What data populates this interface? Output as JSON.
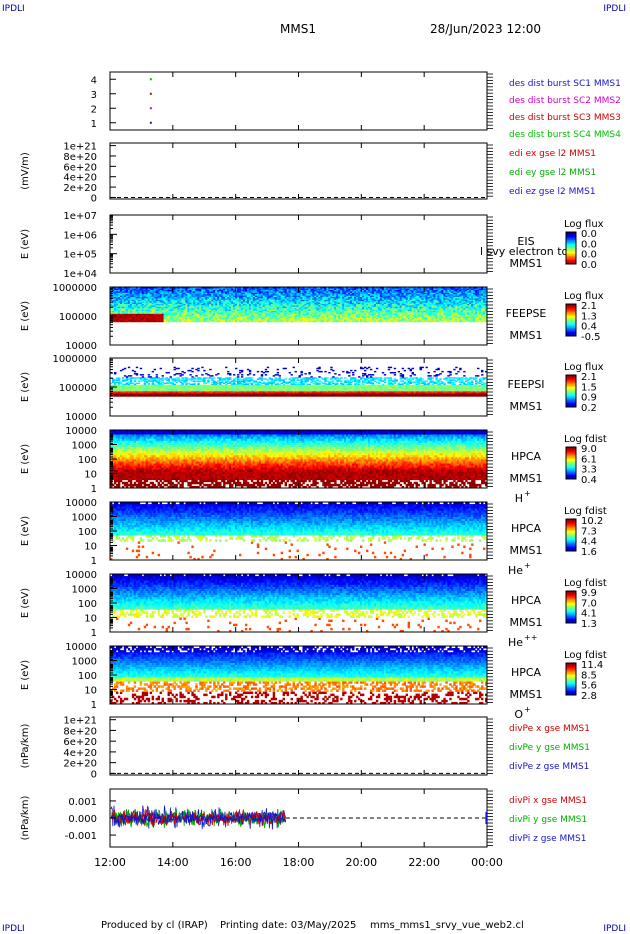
{
  "header": {
    "corner_left": "IPDLI",
    "corner_right": "IPDLI",
    "mission": "MMS1",
    "datetime": "28/Jun/2023 12:00"
  },
  "footer": {
    "produced_by": "Produced by cl (IRAP)",
    "printing_date": "Printing date: 03/May/2025",
    "script_name": "mms_mms1_srvy_vue_web2.cl",
    "corner_left": "IPDLI",
    "corner_right": "IPDLI"
  },
  "colors": {
    "mms1": "#1515c8",
    "mms2": "#d000d0",
    "mms3": "#d00000",
    "mms4": "#00c000",
    "x": "#d00000",
    "y": "#00b000",
    "z": "#1515c8"
  },
  "chart_data": {
    "type": "heatmap",
    "x_ticks": [
      "12:00",
      "14:00",
      "16:00",
      "18:00",
      "20:00",
      "22:00",
      "00:00"
    ],
    "x_range_hours": [
      12,
      24
    ],
    "panels": [
      {
        "id": "burst",
        "kind": "burst",
        "ylabel": "",
        "y_ticks": [
          "4",
          "3",
          "2",
          "1"
        ],
        "y_range": [
          0.5,
          4.5
        ],
        "points": [
          {
            "x": 13.3,
            "y": 4,
            "color": "mms4"
          },
          {
            "x": 13.3,
            "y": 3,
            "color": "mms3"
          },
          {
            "x": 13.3,
            "y": 2,
            "color": "mms2"
          },
          {
            "x": 13.3,
            "y": 1,
            "color": "mms1"
          }
        ],
        "legend": [
          {
            "text": "des dist burst SC1 MMS1",
            "color": "mms1"
          },
          {
            "text": "des dist burst SC2 MMS2",
            "color": "mms2"
          },
          {
            "text": "des dist burst SC3 MMS3",
            "color": "mms3"
          },
          {
            "text": "des dist burst SC4 MMS4",
            "color": "mms4"
          }
        ]
      },
      {
        "id": "edi",
        "kind": "empty_line",
        "ylabel": "(mV/m)",
        "y_ticks": [
          "1e+21",
          "8e+20",
          "6e+20",
          "4e+20",
          "2e+20",
          "0"
        ],
        "y_values": [
          1e+21,
          8e+20,
          6e+20,
          4e+20,
          2e+20,
          0
        ],
        "y_range": [
          -3e+19,
          1.05e+21
        ],
        "zero_line": true,
        "legend": [
          {
            "text": "edi ex gse l2 MMS1",
            "color": "x"
          },
          {
            "text": "edi ey gse l2 MMS1",
            "color": "y"
          },
          {
            "text": "edi ez gse l2 MMS1",
            "color": "z"
          }
        ]
      },
      {
        "id": "eis",
        "kind": "empty_spec",
        "ylabel": "E (eV)",
        "y_ticks": [
          "1e+07",
          "1e+06",
          "1e+05",
          "1e+04"
        ],
        "y_log_range": [
          4,
          7
        ],
        "labels": [
          "EIS",
          "MMS1"
        ],
        "overlay_text": "l svy electron to",
        "cbar": {
          "title": "Log flux",
          "ticks": [
            "0.0",
            "0.0",
            "0.0",
            "0.0"
          ]
        }
      },
      {
        "id": "feepse",
        "kind": "spec",
        "ylabel": "E (eV)",
        "y_ticks": [
          "1000000",
          "100000",
          "10000"
        ],
        "y_log_range": [
          4,
          6
        ],
        "e_range": [
          4.8,
          6.15
        ],
        "pattern": "feepse",
        "labels": [
          "FEEPSE",
          "MMS1"
        ],
        "cbar": {
          "title": "Log flux",
          "ticks": [
            "2.1",
            "1.3",
            "0.4",
            "-0.5"
          ]
        }
      },
      {
        "id": "feepsi",
        "kind": "spec",
        "ylabel": "E (eV)",
        "y_ticks": [
          "1000000",
          "100000",
          "10000"
        ],
        "y_log_range": [
          4,
          6
        ],
        "e_range": [
          4.68,
          5.7
        ],
        "pattern": "feepsi",
        "labels": [
          "FEEPSI",
          "MMS1"
        ],
        "cbar": {
          "title": "Log flux",
          "ticks": [
            "2.1",
            "1.5",
            "0.9",
            "0.2"
          ]
        }
      },
      {
        "id": "hpca_h",
        "kind": "spec",
        "ylabel": "E (eV)",
        "y_ticks": [
          "10000",
          "1000",
          "100",
          "10",
          "1"
        ],
        "y_log_range": [
          0,
          4.3
        ],
        "e_range": [
          0,
          4.3
        ],
        "pattern": "hplus",
        "labels": [
          "HPCA",
          "MMS1",
          "H",
          "+"
        ],
        "cbar": {
          "title": "Log fdist",
          "ticks": [
            "9.0",
            "6.1",
            "3.3",
            "0.4"
          ]
        }
      },
      {
        "id": "hpca_he",
        "kind": "spec",
        "ylabel": "E (eV)",
        "y_ticks": [
          "10000",
          "1000",
          "100",
          "10",
          "1"
        ],
        "y_log_range": [
          0,
          4.3
        ],
        "e_range": [
          0,
          4.3
        ],
        "pattern": "heplus",
        "labels": [
          "HPCA",
          "MMS1",
          "He",
          "+"
        ],
        "cbar": {
          "title": "Log fdist",
          "ticks": [
            "10.2",
            "7.3",
            "4.4",
            "1.6"
          ]
        }
      },
      {
        "id": "hpca_hepp",
        "kind": "spec",
        "ylabel": "E (eV)",
        "y_ticks": [
          "10000",
          "1000",
          "100",
          "10",
          "1"
        ],
        "y_log_range": [
          0,
          4.3
        ],
        "e_range": [
          0,
          4.3
        ],
        "pattern": "hepp",
        "labels": [
          "HPCA",
          "MMS1",
          "He",
          "++"
        ],
        "cbar": {
          "title": "Log fdist",
          "ticks": [
            "9.9",
            "7.0",
            "4.1",
            "1.3"
          ]
        }
      },
      {
        "id": "hpca_o",
        "kind": "spec",
        "ylabel": "E (eV)",
        "y_ticks": [
          "10000",
          "1000",
          "100",
          "10",
          "1"
        ],
        "y_log_range": [
          0,
          4.3
        ],
        "e_range": [
          0,
          4.3
        ],
        "pattern": "oplus",
        "labels": [
          "HPCA",
          "MMS1",
          "O",
          "+"
        ],
        "cbar": {
          "title": "Log fdist",
          "ticks": [
            "11.4",
            "8.5",
            "5.6",
            "2.8"
          ]
        }
      },
      {
        "id": "divpe",
        "kind": "empty_line",
        "ylabel": "(nPa/km)",
        "y_ticks": [
          "1e+21",
          "8e+20",
          "6e+20",
          "4e+20",
          "2e+20",
          "0"
        ],
        "y_values": [
          1e+21,
          8e+20,
          6e+20,
          4e+20,
          2e+20,
          0
        ],
        "y_range": [
          -3e+19,
          1.05e+21
        ],
        "zero_line": true,
        "legend": [
          {
            "text": "divPe x gse MMS1",
            "color": "x"
          },
          {
            "text": "divPe y gse MMS1",
            "color": "y"
          },
          {
            "text": "divPe z gse MMS1",
            "color": "z"
          }
        ]
      },
      {
        "id": "divpi",
        "kind": "noise_line",
        "ylabel": "(nPa/km)",
        "y_ticks": [
          "0.001",
          "0.000",
          "-0.001"
        ],
        "y_values": [
          0.001,
          0,
          -0.001
        ],
        "y_range": [
          -0.0017,
          0.0017
        ],
        "data_end_hour": 17.6,
        "data_restart_hour": 23.95,
        "zero_line": true,
        "legend": [
          {
            "text": "divPi x gse MMS1",
            "color": "x"
          },
          {
            "text": "divPi y gse MMS1",
            "color": "y"
          },
          {
            "text": "divPi z gse MMS1",
            "color": "z"
          }
        ]
      }
    ]
  }
}
